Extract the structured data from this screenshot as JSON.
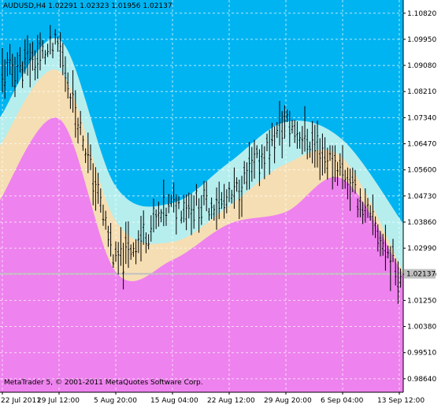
{
  "window": {
    "symbol_label": "AUDUSD,H4",
    "ohlc_label": "1.02291 1.02323 1.01956 1.02137",
    "copyright": "MetaTrader 5, © 2001-2011 MetaQuotes Software Corp.",
    "current_price_label": "1.02137"
  },
  "colors": {
    "background": "#00B4F2",
    "outer_band": "#B6EEEE",
    "inner_band": "#F5DEB3",
    "lower_fill": "#EE82EE",
    "price_bars": "#000000",
    "grid": "#ffffff",
    "price_line": "#C0C0C0"
  },
  "chart_data": {
    "type": "line",
    "title": "AUDUSD,H4",
    "xlabel": "",
    "ylabel": "",
    "ylim": [
      0.9819,
      1.1126
    ],
    "y_ticks": [
      "1.10820",
      "1.09950",
      "1.09080",
      "1.08210",
      "1.07340",
      "1.06470",
      "1.05600",
      "1.04730",
      "1.03860",
      "1.02990",
      "1.02120",
      "1.01250",
      "1.00380",
      "0.99510",
      "0.98640"
    ],
    "x_ticks": [
      "22 Jul 2011",
      "29 Jul 12:00",
      "5 Aug 20:00",
      "15 Aug 04:00",
      "22 Aug 12:00",
      "29 Aug 20:00",
      "6 Sep 04:00",
      "13 Sep 12:00"
    ],
    "x": [
      "22 Jul 2011",
      "29 Jul 12:00",
      "5 Aug 20:00",
      "15 Aug 04:00",
      "22 Aug 12:00",
      "29 Aug 20:00",
      "6 Sep 04:00",
      "13 Sep 12:00"
    ],
    "series": [
      {
        "values": [
          1.0735,
          1.0995,
          1.0505,
          1.045,
          1.0585,
          1.072,
          1.066,
          1.038
        ]
      },
      {
        "values": [
          1.064,
          1.089,
          1.039,
          1.032,
          1.044,
          1.058,
          1.06,
          1.022
        ]
      },
      {
        "values": [
          1.046,
          1.073,
          1.022,
          1.026,
          1.038,
          1.042,
          1.053,
          1.021
        ]
      },
      {
        "values": [
          1.088,
          1.097,
          1.025,
          1.044,
          1.045,
          1.072,
          1.056,
          1.0214
        ]
      }
    ],
    "current_price": 1.02137,
    "grid": true
  }
}
